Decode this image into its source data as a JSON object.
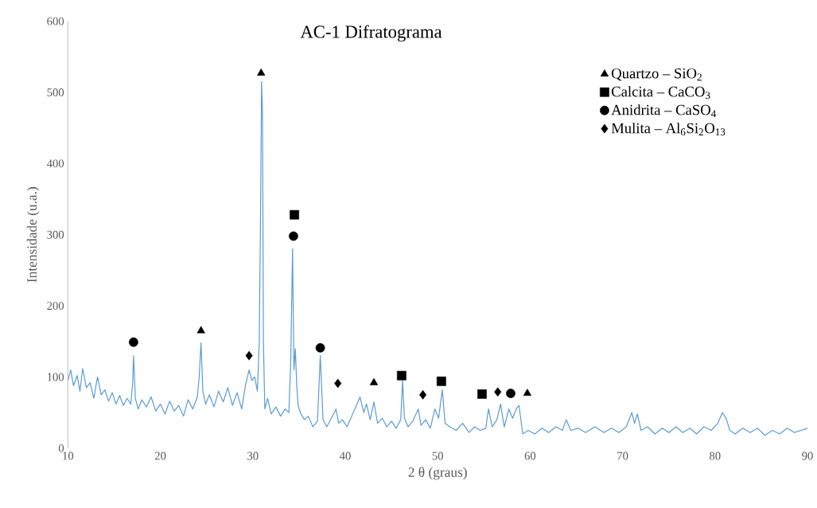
{
  "chart_data": {
    "type": "line",
    "title": "AC-1 Difratograma",
    "xlabel": "2 θ (graus)",
    "ylabel": "Intensidade  (u.a.)",
    "xlim": [
      10,
      90
    ],
    "ylim": [
      0,
      600
    ],
    "xticks": [
      10,
      20,
      30,
      40,
      50,
      60,
      70,
      80,
      90
    ],
    "yticks": [
      0,
      100,
      200,
      300,
      400,
      500,
      600
    ],
    "legend": "top right",
    "series": [
      {
        "color": "#5b9bd5",
        "line_style": "solid",
        "marker": "none",
        "x": [
          10,
          10.3,
          10.6,
          11,
          11.3,
          11.6,
          12,
          12.4,
          12.8,
          13.2,
          13.6,
          14,
          14.4,
          14.8,
          15.2,
          15.6,
          16,
          16.4,
          16.8,
          17.0,
          17.1,
          17.3,
          17.6,
          18,
          18.5,
          19,
          19.5,
          20,
          20.5,
          21,
          21.5,
          22,
          22.5,
          23,
          23.5,
          24,
          24.2,
          24.4,
          24.6,
          24.9,
          25.3,
          25.8,
          26.3,
          26.8,
          27.3,
          27.8,
          28.3,
          28.8,
          29.2,
          29.6,
          29.9,
          30.2,
          30.5,
          30.7,
          30.85,
          30.95,
          31.05,
          31.15,
          31.3,
          31.6,
          32,
          32.5,
          33,
          33.5,
          33.9,
          34.1,
          34.3,
          34.45,
          34.6,
          34.75,
          34.9,
          35.2,
          35.6,
          36,
          36.5,
          37,
          37.3,
          37.6,
          38,
          38.5,
          39,
          39.3,
          39.7,
          40.2,
          40.7,
          41.2,
          41.6,
          42,
          42.3,
          42.7,
          43.1,
          43.5,
          44,
          44.5,
          45,
          45.5,
          46,
          46.2,
          46.4,
          46.8,
          47.3,
          47.9,
          48.2,
          48.7,
          49.2,
          49.7,
          50.1,
          50.5,
          50.8,
          51.3,
          52,
          52.7,
          53.4,
          54,
          54.6,
          55.2,
          55.5,
          55.9,
          56.4,
          56.8,
          57.2,
          57.7,
          58.1,
          58.5,
          58.8,
          59.2,
          59.8,
          60.5,
          61.3,
          62,
          62.8,
          63.5,
          63.9,
          64.4,
          65.2,
          66,
          67,
          68,
          68.8,
          69.6,
          70.4,
          71,
          71.3,
          71.6,
          72,
          72.7,
          73.5,
          74.3,
          75,
          75.8,
          76.5,
          77.3,
          78,
          78.8,
          79.6,
          80.3,
          80.8,
          81.2,
          81.6,
          82.2,
          83,
          83.8,
          84.6,
          85.4,
          86.2,
          87,
          87.8,
          88.6,
          89.3,
          90
        ],
        "values": [
          95,
          110,
          88,
          102,
          80,
          112,
          85,
          92,
          70,
          100,
          75,
          82,
          66,
          78,
          62,
          74,
          60,
          70,
          62,
          90,
          130,
          70,
          55,
          68,
          58,
          72,
          52,
          62,
          48,
          66,
          52,
          60,
          45,
          68,
          55,
          72,
          100,
          148,
          80,
          62,
          75,
          58,
          80,
          65,
          85,
          60,
          78,
          55,
          88,
          110,
          95,
          100,
          80,
          150,
          345,
          515,
          470,
          150,
          55,
          70,
          48,
          58,
          45,
          55,
          50,
          120,
          280,
          110,
          140,
          90,
          60,
          48,
          40,
          45,
          30,
          38,
          130,
          40,
          30,
          42,
          55,
          35,
          40,
          30,
          45,
          60,
          72,
          50,
          62,
          40,
          65,
          35,
          42,
          30,
          38,
          28,
          40,
          95,
          42,
          30,
          38,
          55,
          32,
          40,
          28,
          55,
          42,
          82,
          35,
          30,
          25,
          35,
          22,
          30,
          25,
          28,
          55,
          30,
          40,
          62,
          30,
          55,
          42,
          55,
          60,
          20,
          25,
          20,
          28,
          22,
          30,
          25,
          40,
          25,
          28,
          22,
          30,
          22,
          28,
          22,
          30,
          50,
          35,
          48,
          25,
          30,
          20,
          28,
          22,
          30,
          22,
          28,
          20,
          30,
          25,
          35,
          50,
          42,
          25,
          20,
          28,
          22,
          28,
          18,
          25,
          20,
          28,
          22,
          25,
          28
        ]
      },
      {
        "type": "scatter",
        "name": "Quartzo – SiO$_{2}$",
        "color": "#000000",
        "marker": "triangle",
        "x": [
          30.9,
          24.4,
          43.1,
          59.7
        ],
        "values": [
          527,
          165,
          92,
          77
        ]
      },
      {
        "type": "scatter",
        "name": "Calcita – CaCO$_{3}$",
        "color": "#000000",
        "marker": "square",
        "x": [
          34.5,
          46.1,
          50.4,
          54.8
        ],
        "values": [
          328,
          102,
          94,
          76
        ]
      },
      {
        "type": "scatter",
        "name": "Anidrita – CaSO$_{4}$",
        "color": "#000000",
        "marker": "circle",
        "x": [
          17.1,
          34.4,
          37.3,
          57.9
        ],
        "values": [
          149,
          298,
          141,
          77
        ]
      },
      {
        "type": "scatter",
        "name": "Mulita – Al$_{6}$Si$_{2}$O$_{13}$",
        "color": "#000000",
        "marker": "diamond",
        "x": [
          29.6,
          39.2,
          48.4,
          56.5
        ],
        "values": [
          130,
          91,
          75,
          79
        ]
      }
    ]
  }
}
